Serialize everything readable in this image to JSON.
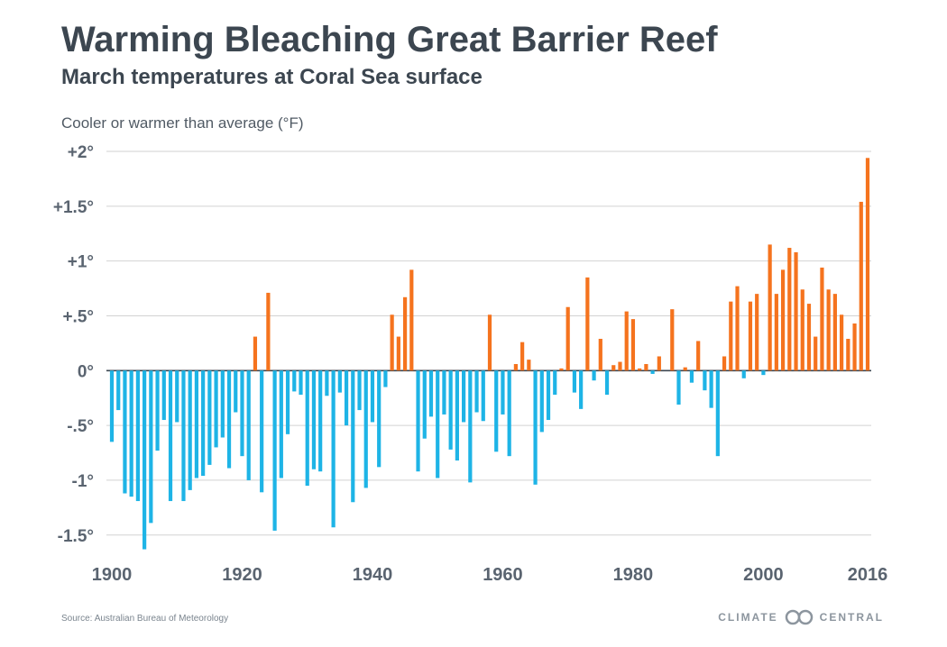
{
  "header": {
    "title": "Warming Bleaching Great Barrier Reef",
    "subtitle": "March temperatures at Coral Sea surface"
  },
  "footer": {
    "source": "Source: Australian Bureau of Meteorology",
    "brand_left": "CLIMATE",
    "brand_right": "CENTRAL"
  },
  "chart_data": {
    "type": "bar",
    "title": "Warming Bleaching Great Barrier Reef",
    "subtitle": "March temperatures at Coral Sea surface",
    "ylabel": "Cooler or warmer than average (°F)",
    "xlabel": "",
    "ylim": [
      -1.65,
      2.0
    ],
    "yticks": [
      2,
      1.5,
      1,
      0.5,
      0,
      -0.5,
      -1,
      -1.5
    ],
    "ytick_labels": [
      "+2°",
      "+1.5°",
      "+1°",
      "+.5°",
      "0°",
      "-.5°",
      "-1°",
      "-1.5°"
    ],
    "xticks": [
      1900,
      1920,
      1940,
      1960,
      1980,
      2000,
      2016
    ],
    "xtick_labels": [
      "1900",
      "1920",
      "1940",
      "1960",
      "1980",
      "2000",
      "2016"
    ],
    "grid": true,
    "colors": {
      "positive": "#f5731e",
      "negative": "#1eb4e6",
      "grid": "#d2d2d2",
      "text": "#5a6470"
    },
    "x": [
      1900,
      1901,
      1902,
      1903,
      1904,
      1905,
      1906,
      1907,
      1908,
      1909,
      1910,
      1911,
      1912,
      1913,
      1914,
      1915,
      1916,
      1917,
      1918,
      1919,
      1920,
      1921,
      1922,
      1923,
      1924,
      1925,
      1926,
      1927,
      1928,
      1929,
      1930,
      1931,
      1932,
      1933,
      1934,
      1935,
      1936,
      1937,
      1938,
      1939,
      1940,
      1941,
      1942,
      1943,
      1944,
      1945,
      1946,
      1947,
      1948,
      1949,
      1950,
      1951,
      1952,
      1953,
      1954,
      1955,
      1956,
      1957,
      1958,
      1959,
      1960,
      1961,
      1962,
      1963,
      1964,
      1965,
      1966,
      1967,
      1968,
      1969,
      1970,
      1971,
      1972,
      1973,
      1974,
      1975,
      1976,
      1977,
      1978,
      1979,
      1980,
      1981,
      1982,
      1983,
      1984,
      1985,
      1986,
      1987,
      1988,
      1989,
      1990,
      1991,
      1992,
      1993,
      1994,
      1995,
      1996,
      1997,
      1998,
      1999,
      2000,
      2001,
      2002,
      2003,
      2004,
      2005,
      2006,
      2007,
      2008,
      2009,
      2010,
      2011,
      2012,
      2013,
      2014,
      2015,
      2016
    ],
    "values": [
      -0.65,
      -0.36,
      -1.12,
      -1.15,
      -1.19,
      -1.63,
      -1.39,
      -0.73,
      -0.45,
      -1.19,
      -0.47,
      -1.19,
      -1.09,
      -0.98,
      -0.96,
      -0.86,
      -0.7,
      -0.61,
      -0.89,
      -0.38,
      -0.78,
      -1.0,
      0.31,
      -1.11,
      0.71,
      -1.46,
      -0.98,
      -0.58,
      -0.19,
      -0.22,
      -1.05,
      -0.9,
      -0.92,
      -0.23,
      -1.43,
      -0.2,
      -0.5,
      -1.2,
      -0.36,
      -1.07,
      -0.47,
      -0.88,
      -0.15,
      0.51,
      0.31,
      0.67,
      0.92,
      -0.92,
      -0.62,
      -0.42,
      -0.98,
      -0.4,
      -0.72,
      -0.82,
      -0.47,
      -1.02,
      -0.38,
      -0.46,
      0.51,
      -0.74,
      -0.4,
      -0.78,
      0.06,
      0.26,
      0.1,
      -1.04,
      -0.56,
      -0.45,
      -0.22,
      0.02,
      0.58,
      -0.2,
      -0.35,
      0.85,
      -0.09,
      0.29,
      -0.22,
      0.05,
      0.08,
      0.54,
      0.47,
      0.02,
      0.06,
      -0.03,
      0.13,
      0.0,
      0.56,
      -0.31,
      0.03,
      -0.11,
      0.27,
      -0.18,
      -0.34,
      -0.78,
      0.13,
      0.63,
      0.77,
      -0.07,
      0.63,
      0.7,
      -0.04,
      1.15,
      0.7,
      0.92,
      1.12,
      1.08,
      0.74,
      0.61,
      0.31,
      0.94,
      0.74,
      0.7,
      0.51,
      0.29,
      0.43,
      1.54,
      1.94
    ]
  }
}
